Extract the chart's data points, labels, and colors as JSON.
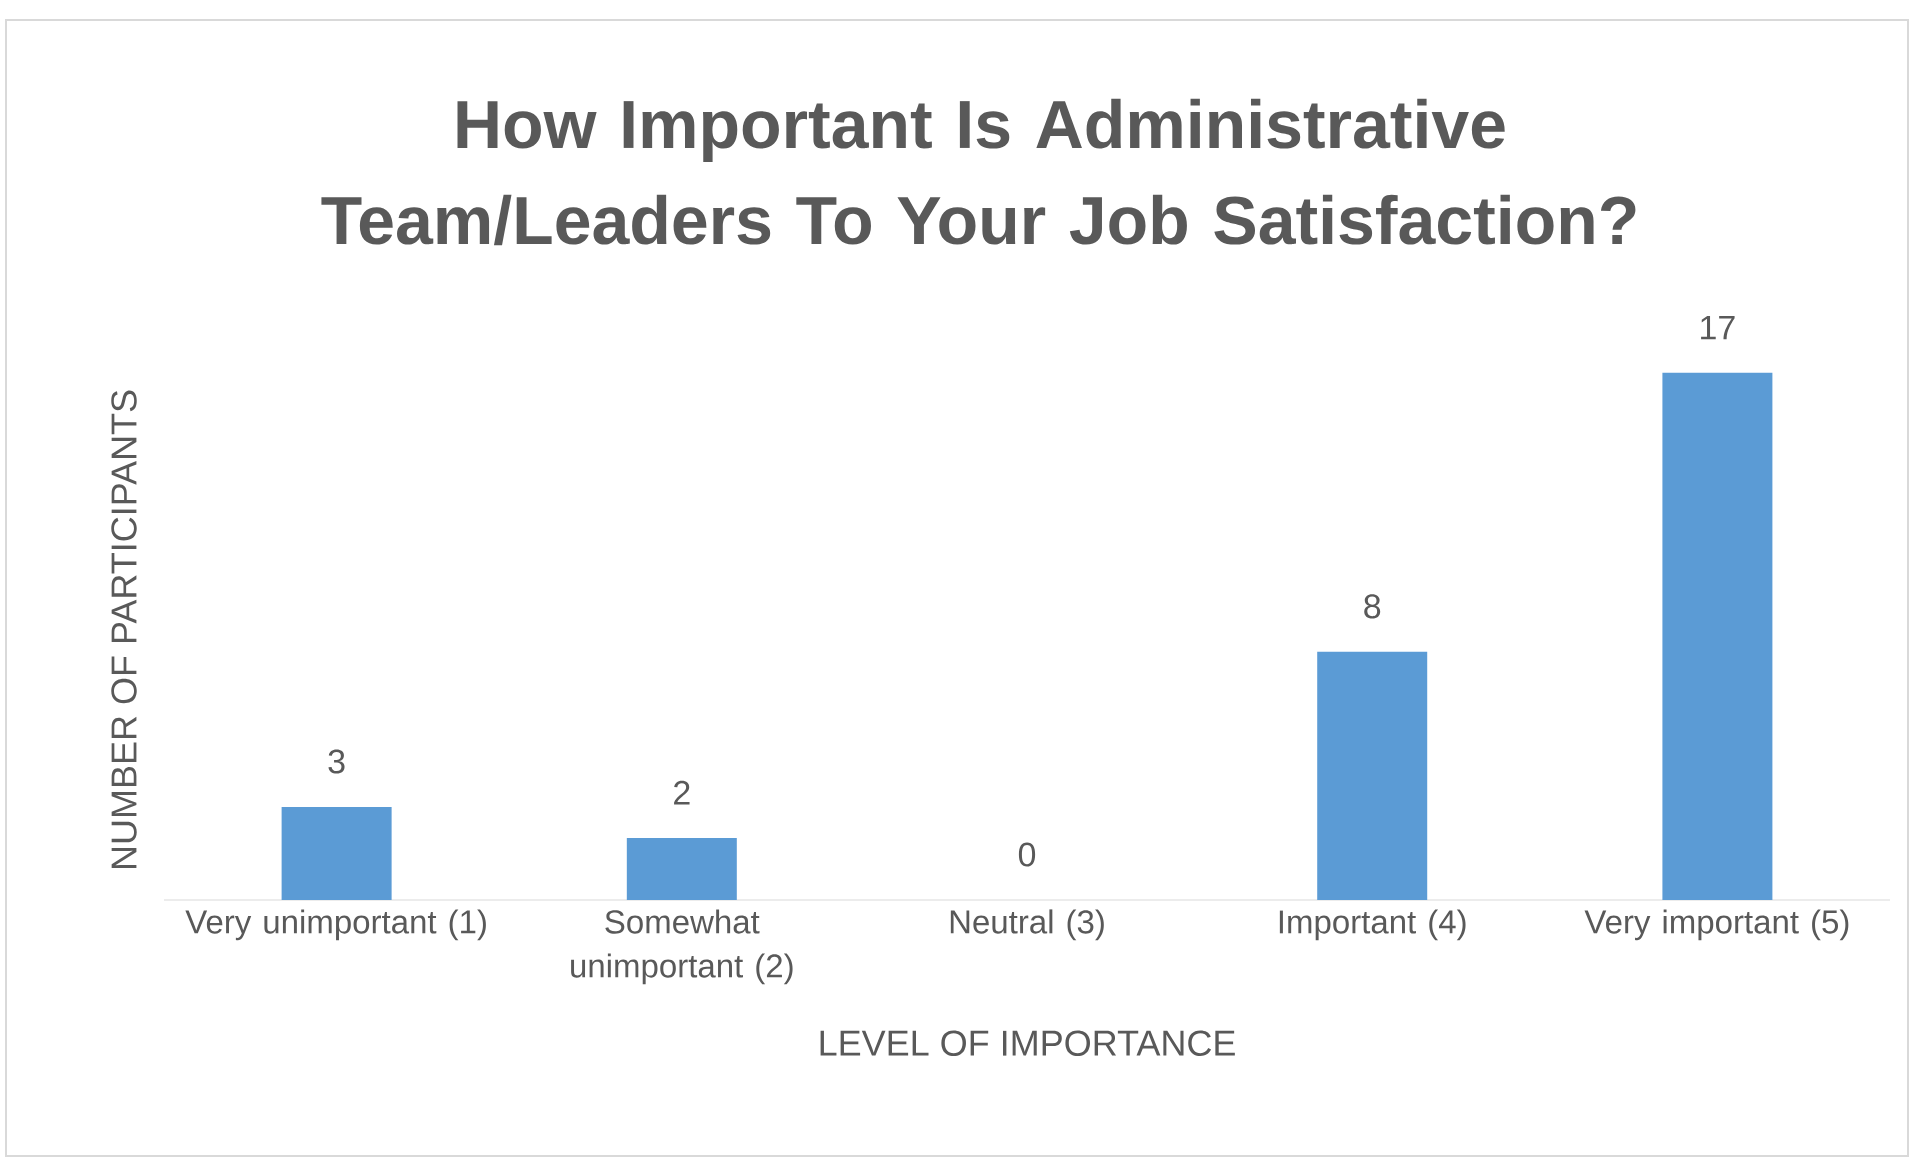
{
  "chart_data": {
    "type": "bar",
    "title": "How Important Is Administrative Team/Leaders To Your Job Satisfaction?",
    "xlabel": "LEVEL OF IMPORTANCE",
    "ylabel": "NUMBER OF PARTICIPANTS",
    "categories": [
      "Very unimportant (1)",
      "Somewhat unimportant (2)",
      "Neutral (3)",
      "Important (4)",
      "Very important (5)"
    ],
    "values": [
      3,
      2,
      0,
      8,
      17
    ],
    "color": "#5b9bd5",
    "data_labels": true
  }
}
